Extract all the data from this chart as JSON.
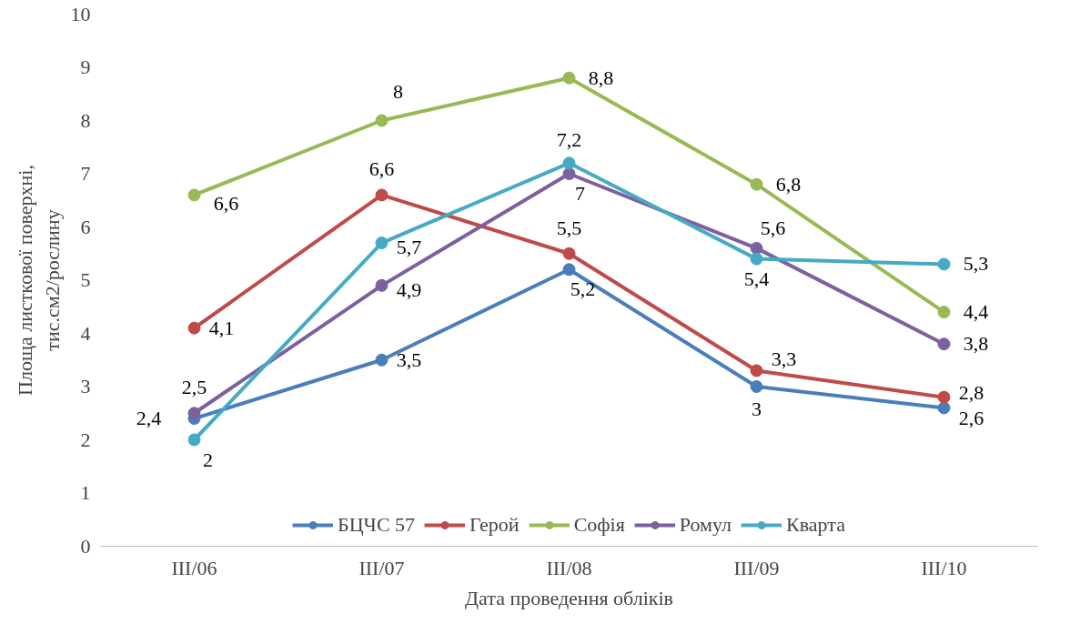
{
  "chart_data": {
    "type": "line",
    "xlabel": "Дата проведення обліків",
    "ylabel": "Площа листкової поверхні, тис.см2/рослину",
    "categories": [
      "ІІІ/06",
      "ІІІ/07",
      "ІІІ/08",
      "ІІІ/09",
      "ІІІ/10"
    ],
    "ylim": [
      0,
      10
    ],
    "yticks": [
      0,
      1,
      2,
      3,
      4,
      5,
      6,
      7,
      8,
      9,
      10
    ],
    "grid": false,
    "legend": "bottom",
    "marker": "circle",
    "line_style": "solid",
    "series": [
      {
        "name": "БЦЧС 57",
        "color": "#4a7ebb",
        "values": [
          2.4,
          3.5,
          5.2,
          3,
          2.6
        ],
        "value_labels": [
          "2,4",
          "3,5",
          "5,2",
          "3",
          "2,6"
        ]
      },
      {
        "name": "Герой",
        "color": "#be4b48",
        "values": [
          4.1,
          6.6,
          5.5,
          3.3,
          2.8
        ],
        "value_labels": [
          "4,1",
          "6,6",
          "5,5",
          "3,3",
          "2,8"
        ]
      },
      {
        "name": "Софія",
        "color": "#98b954",
        "values": [
          6.6,
          8,
          8.8,
          6.8,
          4.4
        ],
        "value_labels": [
          "6,6",
          "8",
          "8,8",
          "6,8",
          "4,4"
        ]
      },
      {
        "name": "Ромул",
        "color": "#7d60a0",
        "values": [
          2.5,
          4.9,
          7,
          5.6,
          3.8
        ],
        "value_labels": [
          "2,5",
          "4,9",
          "7",
          "5,6",
          "3,8"
        ]
      },
      {
        "name": "Кварта",
        "color": "#46aac5",
        "values": [
          2,
          5.7,
          7.2,
          5.4,
          5.3
        ],
        "value_labels": [
          "2",
          "5,7",
          "7,2",
          "5,4",
          "5,3"
        ]
      }
    ]
  }
}
